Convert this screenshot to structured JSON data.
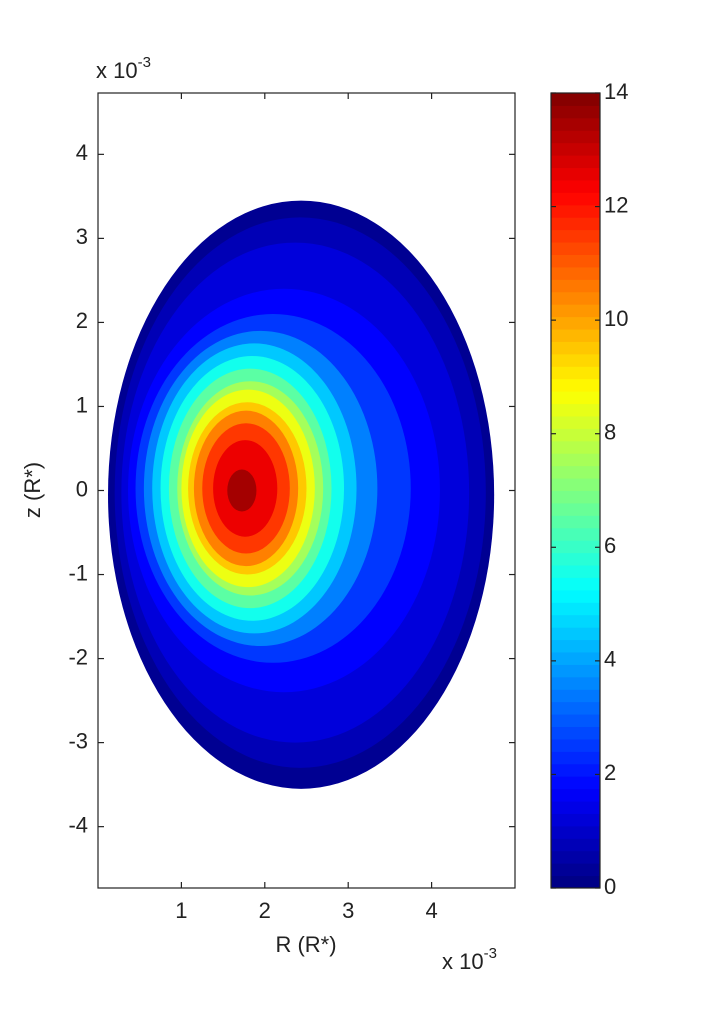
{
  "chart_data": {
    "type": "contour",
    "x_label": "R (R*)",
    "y_label": "z (R*)",
    "x_exponent": {
      "base": "x 10",
      "power": "-3"
    },
    "y_exponent": {
      "base": "x 10",
      "power": "-3"
    },
    "xlim": [
      0,
      5
    ],
    "xticks": [
      1,
      2,
      3,
      4
    ],
    "ylim": [
      -4.73,
      4.73
    ],
    "yticks": [
      -4,
      -3,
      -2,
      -1,
      0,
      1,
      2,
      3,
      4
    ],
    "colormap": "jet",
    "clim": [
      0,
      14
    ],
    "cticks": [
      0,
      2,
      4,
      6,
      8,
      10,
      12,
      14
    ],
    "contours": [
      {
        "level": 0.25,
        "xmin": 0.12,
        "xmax": 4.75,
        "ymin": -3.55,
        "ymax": 3.45
      },
      {
        "level": 0.75,
        "xmin": 0.2,
        "xmax": 4.65,
        "ymin": -3.3,
        "ymax": 3.25
      },
      {
        "level": 1.25,
        "xmin": 0.28,
        "xmax": 4.45,
        "ymin": -3.0,
        "ymax": 2.95
      },
      {
        "level": 1.75,
        "xmin": 0.36,
        "xmax": 4.1,
        "ymin": -2.4,
        "ymax": 2.4
      },
      {
        "level": 2.5,
        "xmin": 0.45,
        "xmax": 3.75,
        "ymin": -2.05,
        "ymax": 2.1
      },
      {
        "level": 3.5,
        "xmin": 0.55,
        "xmax": 3.35,
        "ymin": -1.85,
        "ymax": 1.9
      },
      {
        "level": 4.5,
        "xmin": 0.65,
        "xmax": 3.1,
        "ymin": -1.7,
        "ymax": 1.75
      },
      {
        "level": 5.5,
        "xmin": 0.75,
        "xmax": 2.95,
        "ymin": -1.55,
        "ymax": 1.6
      },
      {
        "level": 6.5,
        "xmin": 0.85,
        "xmax": 2.8,
        "ymin": -1.4,
        "ymax": 1.45
      },
      {
        "level": 7.5,
        "xmin": 0.95,
        "xmax": 2.7,
        "ymin": -1.25,
        "ymax": 1.3
      },
      {
        "level": 8.5,
        "xmin": 1.0,
        "xmax": 2.6,
        "ymin": -1.15,
        "ymax": 1.2
      },
      {
        "level": 9.5,
        "xmin": 1.08,
        "xmax": 2.5,
        "ymin": -1.0,
        "ymax": 1.05
      },
      {
        "level": 10.5,
        "xmin": 1.15,
        "xmax": 2.4,
        "ymin": -0.9,
        "ymax": 0.95
      },
      {
        "level": 11.5,
        "xmin": 1.25,
        "xmax": 2.3,
        "ymin": -0.75,
        "ymax": 0.8
      },
      {
        "level": 12.5,
        "xmin": 1.38,
        "xmax": 2.15,
        "ymin": -0.55,
        "ymax": 0.6
      },
      {
        "level": 13.5,
        "xmin": 1.55,
        "xmax": 1.9,
        "ymin": -0.25,
        "ymax": 0.25
      }
    ]
  }
}
